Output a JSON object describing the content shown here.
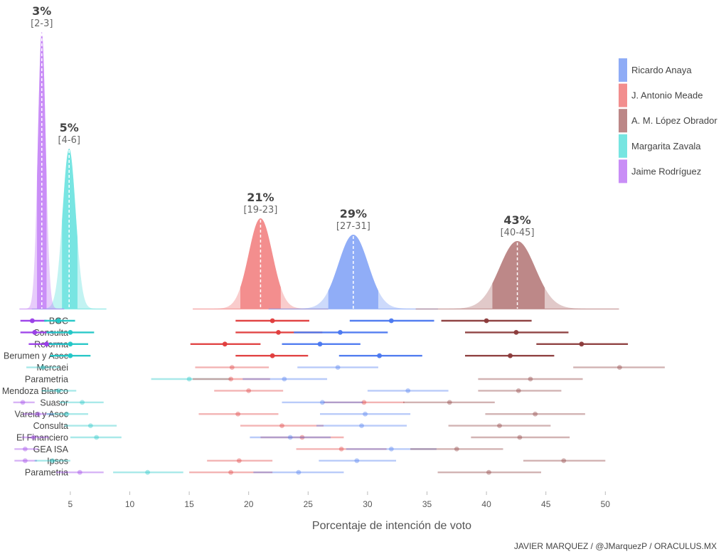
{
  "chart_data": {
    "type": "ridgeline",
    "xlabel": "Porcentaje de intención de voto",
    "xlim": [
      0,
      55
    ],
    "x_ticks": [
      "5",
      "10",
      "15",
      "20",
      "25",
      "30",
      "35",
      "40",
      "45",
      "50"
    ],
    "x_tick_values": [
      5,
      10,
      15,
      20,
      25,
      30,
      35,
      40,
      45,
      50
    ],
    "credit": "JAVIER MARQUEZ / @JMarquezP / ORACULUS.MX",
    "legend_position": "top-right",
    "candidates": [
      {
        "key": "anaya",
        "name": "Ricardo Anaya",
        "color": "#7b9ef5",
        "dark": "#4a78f0",
        "estimate": 28.8,
        "ci": [
          27,
          31
        ],
        "ci80": [
          26.7,
          30.9
        ],
        "sd": 1.25,
        "pct_label": "29%",
        "ci_label": "[27-31]"
      },
      {
        "key": "meade",
        "name": "J. Antonio Meade",
        "color": "#f07a7a",
        "dark": "#e03c3c",
        "estimate": 21.0,
        "ci": [
          19,
          23
        ],
        "ci80": [
          19.3,
          22.7
        ],
        "sd": 1.0,
        "pct_label": "21%",
        "ci_label": "[19-23]"
      },
      {
        "key": "amlo",
        "name": "A. M. López Obrador",
        "color": "#b07272",
        "dark": "#8b3a3a",
        "estimate": 42.6,
        "ci": [
          40,
          45
        ],
        "ci80": [
          40.5,
          44.9
        ],
        "sd": 1.5,
        "pct_label": "43%",
        "ci_label": "[40-45]"
      },
      {
        "key": "zavala",
        "name": "Margarita Zavala",
        "color": "#5fe0dc",
        "dark": "#20c6c6",
        "estimate": 4.9,
        "ci": [
          4,
          6
        ],
        "ci80": [
          4.3,
          5.6
        ],
        "sd": 0.55,
        "pct_label": "5%",
        "ci_label": "[4-6]"
      },
      {
        "key": "rodriguez",
        "name": "Jaime Rodríguez",
        "color": "#c07af5",
        "dark": "#9a3ee8",
        "estimate": 2.6,
        "ci": [
          2,
          3
        ],
        "ci80": [
          2.2,
          3.0
        ],
        "sd": 0.33,
        "pct_label": "3%",
        "ci_label": "[2-3]"
      }
    ],
    "polls": [
      {
        "pollster": "BGC",
        "strong": true,
        "values": {
          "rodriguez": [
            1.8,
            0.8,
            3.0
          ],
          "zavala": [
            4.0,
            2.8,
            5.4
          ],
          "meade": [
            22.0,
            18.9,
            25.1
          ],
          "anaya": [
            32.0,
            28.5,
            35.6
          ],
          "amlo": [
            40.0,
            36.2,
            43.8
          ]
        }
      },
      {
        "pollster": "Consulta",
        "strong": true,
        "values": {
          "rodriguez": [
            2.0,
            0.8,
            3.6
          ],
          "zavala": [
            5.0,
            3.0,
            7.0
          ],
          "meade": [
            22.5,
            18.9,
            26.2
          ],
          "anaya": [
            27.7,
            23.8,
            31.7
          ],
          "amlo": [
            42.5,
            38.2,
            46.9
          ]
        }
      },
      {
        "pollster": "Reforma",
        "strong": true,
        "values": {
          "rodriguez": [
            3.0,
            1.5,
            4.5
          ],
          "zavala": [
            5.0,
            3.2,
            6.5
          ],
          "meade": [
            18.0,
            15.1,
            21.0
          ],
          "anaya": [
            26.0,
            22.8,
            29.4
          ],
          "amlo": [
            48.0,
            44.2,
            51.9
          ]
        }
      },
      {
        "pollster": "Berumen y Asoc",
        "strong": true,
        "values": {
          "zavala": [
            5.0,
            3.3,
            6.7
          ],
          "meade": [
            22.0,
            18.9,
            25.0
          ],
          "anaya": [
            31.0,
            27.6,
            34.6
          ],
          "amlo": [
            42.0,
            38.2,
            45.7
          ]
        }
      },
      {
        "pollster": "Mercaei",
        "strong": false,
        "values": {
          "zavala": [
            2.7,
            1.3,
            4.1
          ],
          "meade": [
            18.6,
            15.5,
            21.7
          ],
          "anaya": [
            27.5,
            24.1,
            30.9
          ],
          "amlo": [
            51.2,
            47.3,
            55.0
          ]
        }
      },
      {
        "pollster": "Parametria",
        "strong": false,
        "values": {
          "zavala": [
            15.0,
            11.8,
            18.5
          ],
          "meade": [
            18.5,
            15.3,
            21.8
          ],
          "anaya": [
            23.0,
            19.5,
            26.6
          ],
          "amlo": [
            43.7,
            39.3,
            48.1
          ]
        }
      },
      {
        "pollster": "Mendoza Blanco",
        "strong": false,
        "values": {
          "zavala": [
            4.0,
            2.6,
            5.5
          ],
          "meade": [
            20.0,
            17.1,
            22.9
          ],
          "anaya": [
            33.4,
            30.0,
            36.8
          ],
          "amlo": [
            42.7,
            39.3,
            46.3
          ]
        }
      },
      {
        "pollster": "Suasor",
        "strong": false,
        "values": {
          "rodriguez": [
            1.0,
            0.2,
            2.0
          ],
          "zavala": [
            6.0,
            4.1,
            7.8
          ],
          "meade": [
            29.7,
            26.3,
            33.1
          ],
          "anaya": [
            26.2,
            22.8,
            29.6
          ],
          "amlo": [
            36.9,
            33.0,
            40.7
          ]
        }
      },
      {
        "pollster": "Varela y Asoc",
        "strong": false,
        "values": {
          "rodriguez": [
            2.3,
            1.0,
            3.6
          ],
          "zavala": [
            4.7,
            3.0,
            6.5
          ],
          "meade": [
            19.1,
            15.8,
            22.5
          ],
          "anaya": [
            29.8,
            26.0,
            33.6
          ],
          "amlo": [
            44.1,
            39.9,
            48.3
          ]
        }
      },
      {
        "pollster": "Consulta",
        "strong": false,
        "values": {
          "zavala": [
            6.7,
            4.5,
            8.9
          ],
          "meade": [
            22.8,
            19.3,
            26.3
          ],
          "anaya": [
            29.5,
            25.7,
            33.3
          ],
          "amlo": [
            41.1,
            36.8,
            45.4
          ]
        }
      },
      {
        "pollster": "El Financiero",
        "strong": false,
        "values": {
          "rodriguez": [
            1.9,
            0.9,
            3.2
          ],
          "zavala": [
            7.2,
            5.0,
            9.3
          ],
          "meade": [
            24.5,
            21.0,
            28.0
          ],
          "anaya": [
            23.5,
            20.1,
            26.9
          ],
          "amlo": [
            42.8,
            38.7,
            47.0
          ]
        }
      },
      {
        "pollster": "GEA ISA",
        "strong": false,
        "values": {
          "rodriguez": [
            1.2,
            0.3,
            2.3
          ],
          "meade": [
            27.8,
            24.0,
            31.6
          ],
          "anaya": [
            32.0,
            28.2,
            35.8
          ],
          "amlo": [
            37.5,
            33.6,
            41.4
          ]
        }
      },
      {
        "pollster": "Ipsos",
        "strong": false,
        "values": {
          "rodriguez": [
            1.2,
            0.3,
            2.2
          ],
          "zavala": [
            3.5,
            2.0,
            5.0
          ],
          "meade": [
            19.2,
            16.5,
            22.0
          ],
          "anaya": [
            29.1,
            25.9,
            32.4
          ],
          "amlo": [
            46.5,
            43.1,
            50.0
          ]
        }
      },
      {
        "pollster": "Parametria",
        "strong": false,
        "values": {
          "rodriguez": [
            5.8,
            3.8,
            7.8
          ],
          "zavala": [
            11.5,
            8.6,
            14.5
          ],
          "meade": [
            18.5,
            15.0,
            22.0
          ],
          "anaya": [
            24.2,
            20.4,
            28.0
          ],
          "amlo": [
            40.2,
            35.9,
            44.6
          ]
        }
      }
    ]
  }
}
